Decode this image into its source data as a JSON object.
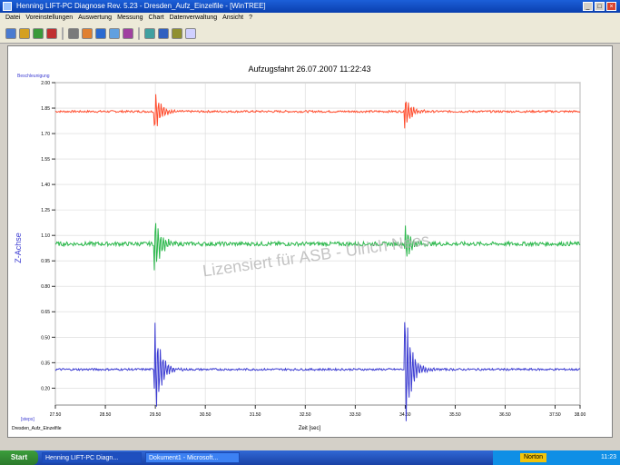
{
  "window": {
    "title": "Henning LIFT-PC Diagnose Rev. 5.23 - Dresden_Aufz_Einzelfile - [WinTREE]"
  },
  "menu": [
    "Datei",
    "Voreinstellungen",
    "Auswertung",
    "Messung",
    "Chart",
    "Datenverwaltung",
    "Ansicht",
    "?"
  ],
  "toolbar_icons": [
    "new-icon",
    "open-icon",
    "save-icon",
    "print-icon",
    "copy-icon",
    "paste-icon",
    "zoom-in-icon",
    "zoom-out-icon",
    "measure-icon",
    "filter-icon",
    "chart-icon",
    "table-icon",
    "help-icon"
  ],
  "chart_data": {
    "type": "line",
    "title": "Aufzugsfahrt 26.07.2007 11:22:43",
    "ylabel": "Z-Achse",
    "y_unit": "Beschleunigung",
    "xlabel": "Zeit [sec]",
    "x_unit_label": "[steps]",
    "footer_text": "Dresden_Aufz_Einzelfile",
    "watermark": "Lizensiert für ASB - Ulrich Nees",
    "ylim": [
      0.1,
      2.0
    ],
    "xlim": [
      27.5,
      38.0
    ],
    "y_ticks": [
      "2.00",
      "1.85",
      "1.70",
      "1.55",
      "1.40",
      "1.25",
      "1.10",
      "0.95",
      "0.80",
      "0.65",
      "0.50",
      "0.35",
      "0.20"
    ],
    "x_ticks": [
      "27.50",
      "28.50",
      "29.50",
      "30.50",
      "31.50",
      "32.50",
      "33.50",
      "34.50",
      "35.50",
      "36.50",
      "37.50",
      "38.00"
    ],
    "grid": true,
    "series": [
      {
        "color": "#ff4d2e",
        "baseline": 1.83,
        "noise": 0.006,
        "spikes": [
          {
            "x": 29.5,
            "amp": 0.12
          },
          {
            "x": 34.5,
            "amp": 0.1
          }
        ]
      },
      {
        "color": "#2db84d",
        "baseline": 1.05,
        "noise": 0.012,
        "spikes": [
          {
            "x": 29.5,
            "amp": 0.16
          },
          {
            "x": 34.5,
            "amp": 0.12
          }
        ]
      },
      {
        "color": "#3c3cd2",
        "baseline": 0.31,
        "noise": 0.006,
        "spikes": [
          {
            "x": 29.5,
            "amp": 0.28
          },
          {
            "x": 34.5,
            "amp": 0.38
          }
        ]
      }
    ]
  },
  "taskbar": {
    "start": "Start",
    "tasks": [
      "Henning LIFT-PC Diagn...",
      "Dokument1 - Microsoft..."
    ],
    "tray_ext": "Norton",
    "clock": "11:23"
  }
}
